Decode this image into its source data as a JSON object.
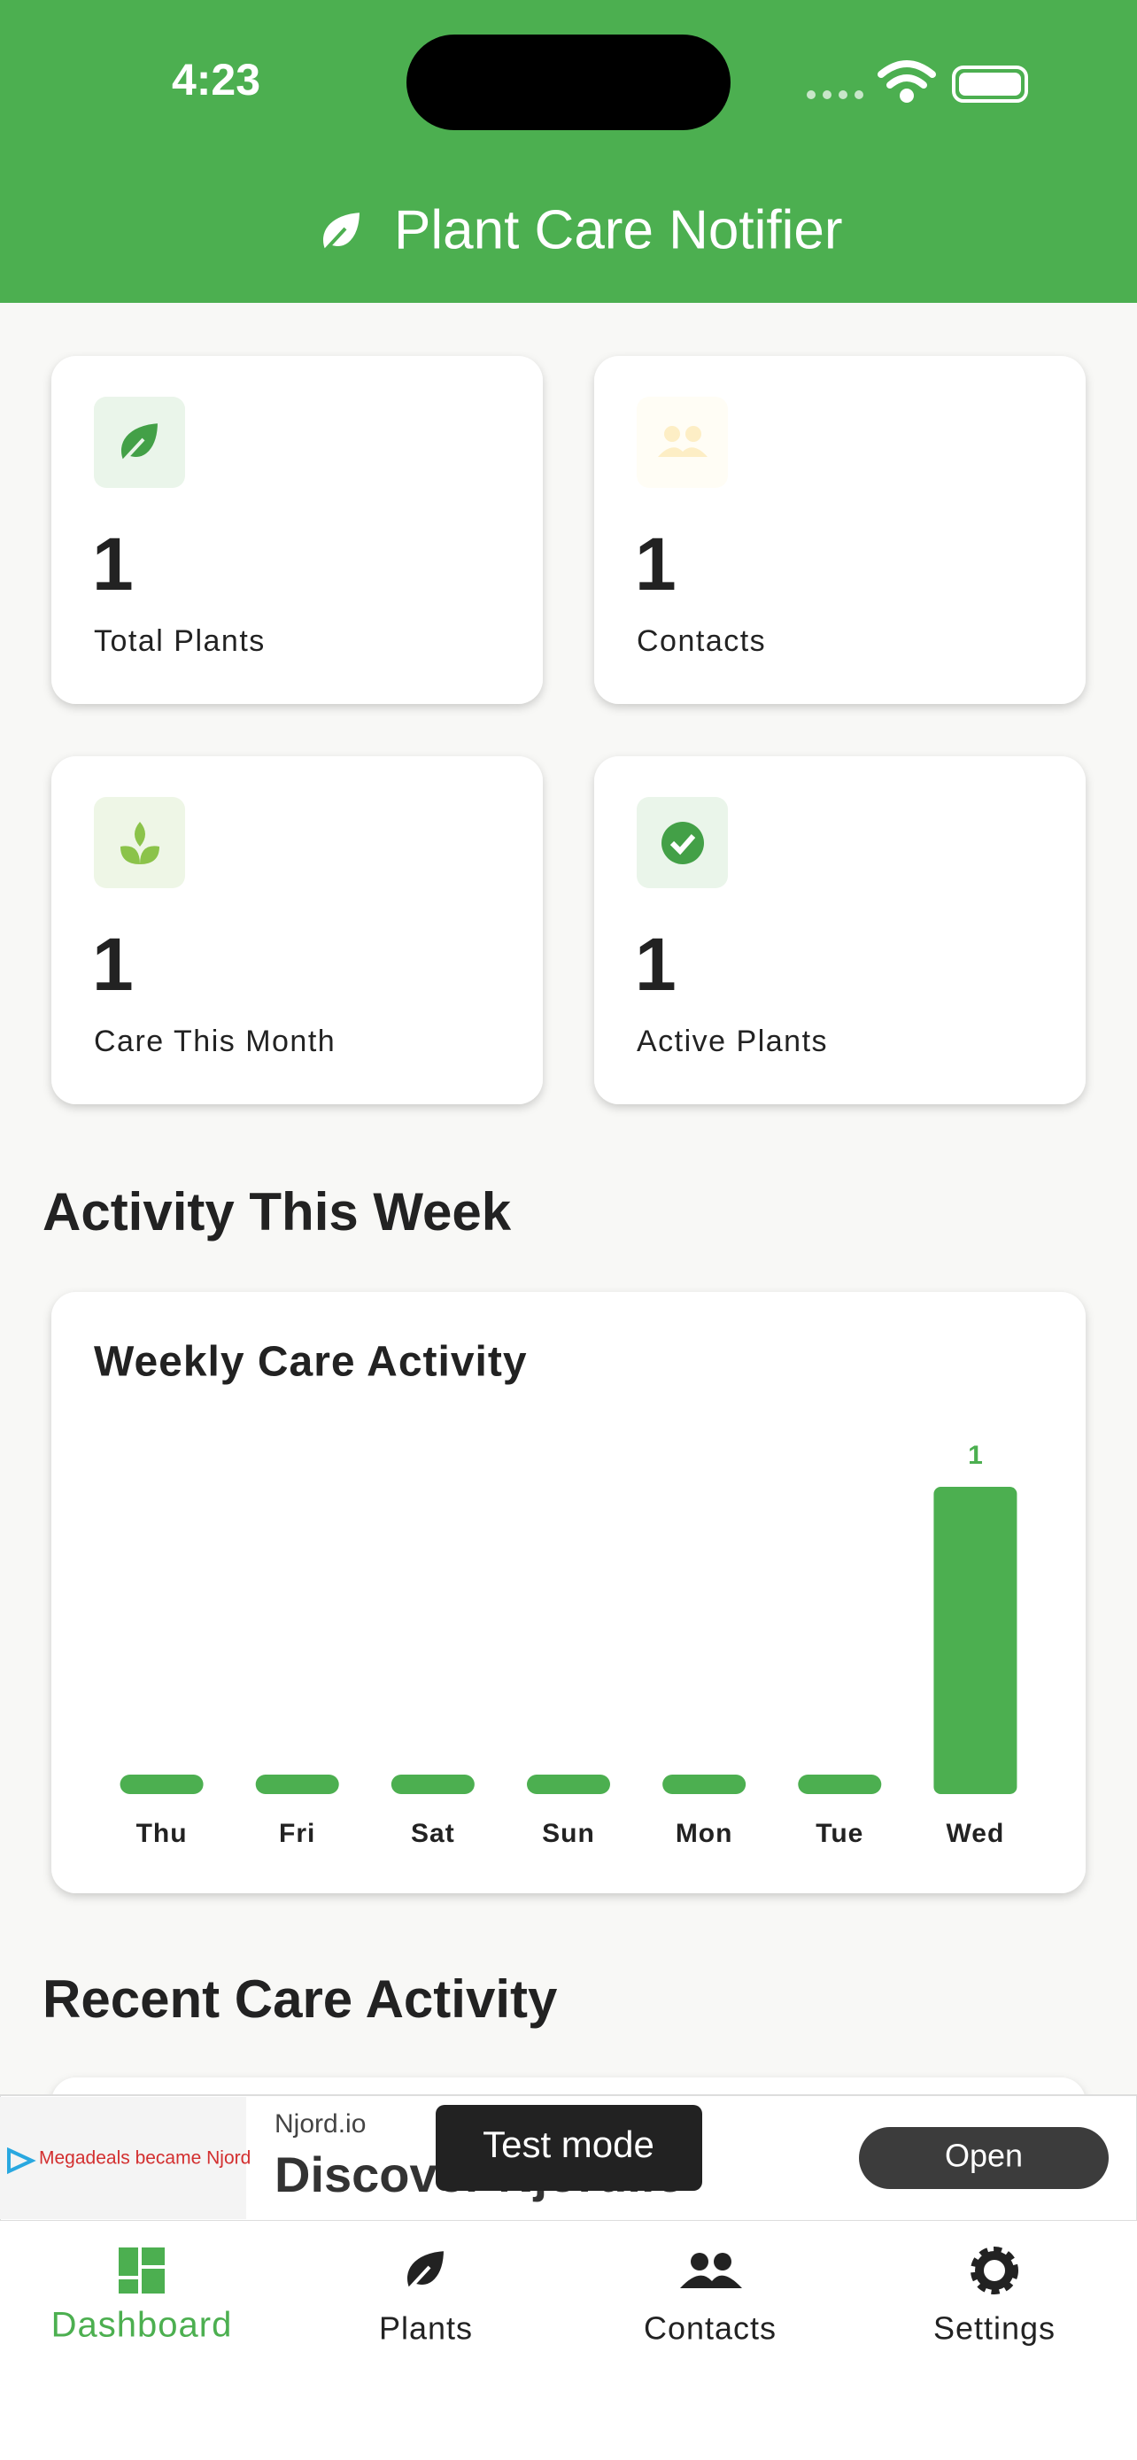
{
  "status_bar": {
    "time": "4:23"
  },
  "header": {
    "title": "Plant Care Notifier"
  },
  "stats": [
    {
      "value": 1,
      "label": "Total Plants"
    },
    {
      "value": 1,
      "label": "Contacts"
    },
    {
      "value": 1,
      "label": "Care This Month"
    },
    {
      "value": 1,
      "label": "Active Plants"
    }
  ],
  "sections": [
    "Activity This Week",
    "Recent Care Activity"
  ],
  "chart_data": {
    "type": "bar",
    "title": "Weekly Care Activity",
    "categories": [
      "Thu",
      "Fri",
      "Sat",
      "Sun",
      "Mon",
      "Tue",
      "Wed"
    ],
    "values": [
      0,
      0,
      0,
      0,
      0,
      0,
      1
    ],
    "color": "#4caf50",
    "ylim": [
      0,
      1
    ]
  },
  "ad": {
    "image_text": "Megadeals became Njord",
    "advertiser": "Njord.io",
    "headline": "Discover Njord.io",
    "badge": "Test mode",
    "button": "Open"
  },
  "nav": [
    {
      "label": "Dashboard",
      "active": true
    },
    {
      "label": "Plants",
      "active": false
    },
    {
      "label": "Contacts",
      "active": false
    },
    {
      "label": "Settings",
      "active": false
    }
  ]
}
